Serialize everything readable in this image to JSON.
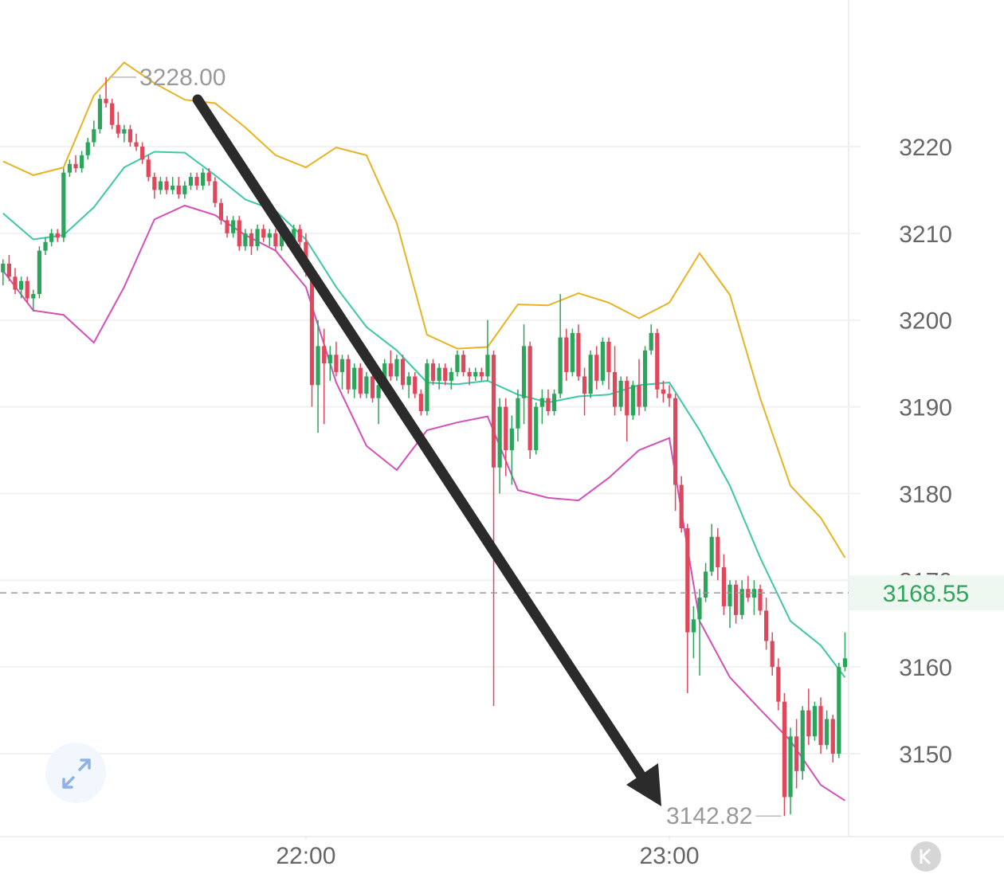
{
  "chart_data": {
    "type": "candlestick",
    "xlim": [
      -0.5,
      139.6
    ],
    "ylim": [
      3140.45,
      3236.9
    ],
    "yticks": [
      3150,
      3160,
      3170,
      3180,
      3190,
      3200,
      3210,
      3220
    ],
    "xticks": [
      {
        "value": 50,
        "label": "22:00"
      },
      {
        "value": 110,
        "label": "23:00"
      }
    ],
    "grid": true,
    "up_color": "#2aa65a",
    "down_color": "#e0475a",
    "candles": [
      [
        3205.5,
        3207,
        3204,
        3206.5
      ],
      [
        3206.5,
        3207.5,
        3204.5,
        3205
      ],
      [
        3205,
        3206,
        3203,
        3203.5
      ],
      [
        3203.5,
        3205,
        3202.5,
        3204.5
      ],
      [
        3204.5,
        3205,
        3202,
        3202.5
      ],
      [
        3202.5,
        3203.5,
        3201,
        3203
      ],
      [
        3203,
        3208.5,
        3202.5,
        3208
      ],
      [
        3208,
        3209.5,
        3207.5,
        3209
      ],
      [
        3209,
        3210.5,
        3208.5,
        3210
      ],
      [
        3210,
        3210.5,
        3209,
        3209.5
      ],
      [
        3209.5,
        3217.5,
        3209,
        3217
      ],
      [
        3217,
        3218.5,
        3216.5,
        3218
      ],
      [
        3218,
        3219,
        3217,
        3217.5
      ],
      [
        3217.5,
        3219.5,
        3217,
        3219
      ],
      [
        3219,
        3221,
        3218.5,
        3220.5
      ],
      [
        3220.5,
        3223,
        3220,
        3222
      ],
      [
        3222,
        3226,
        3221.5,
        3225.5
      ],
      [
        3225.5,
        3228,
        3224.5,
        3225
      ],
      [
        3225,
        3225.5,
        3222,
        3222.5
      ],
      [
        3222.5,
        3224,
        3221,
        3221.5
      ],
      [
        3221.5,
        3222.5,
        3220.5,
        3222
      ],
      [
        3222,
        3222.5,
        3220,
        3220.5
      ],
      [
        3220.5,
        3221.5,
        3219.5,
        3220
      ],
      [
        3220,
        3220.5,
        3218,
        3218.5
      ],
      [
        3218.5,
        3219,
        3216,
        3216.5
      ],
      [
        3216.5,
        3217,
        3214,
        3215
      ],
      [
        3215,
        3216.5,
        3214.5,
        3216
      ],
      [
        3216,
        3216.5,
        3214.5,
        3215
      ],
      [
        3215,
        3216.5,
        3214.5,
        3215.5
      ],
      [
        3215.5,
        3216.5,
        3214,
        3214.5
      ],
      [
        3214.5,
        3216,
        3214,
        3215.5
      ],
      [
        3215.5,
        3217,
        3215,
        3216.5
      ],
      [
        3216.5,
        3217,
        3215,
        3215.5
      ],
      [
        3215.5,
        3217.5,
        3215,
        3217
      ],
      [
        3217,
        3217.5,
        3215.5,
        3216
      ],
      [
        3216,
        3216.5,
        3213,
        3213.5
      ],
      [
        3213.5,
        3214,
        3211,
        3211.5
      ],
      [
        3211.5,
        3212,
        3209.5,
        3210
      ],
      [
        3210,
        3212,
        3209.5,
        3211.5
      ],
      [
        3211.5,
        3212,
        3208,
        3208.5
      ],
      [
        3208.5,
        3210.5,
        3208,
        3210
      ],
      [
        3210,
        3210.5,
        3207.5,
        3208.5
      ],
      [
        3208.5,
        3211,
        3208,
        3210.5
      ],
      [
        3210.5,
        3211,
        3209,
        3209.5
      ],
      [
        3209.5,
        3210.5,
        3208.5,
        3210
      ],
      [
        3210,
        3210.5,
        3208,
        3208.5
      ],
      [
        3208.5,
        3210.5,
        3208,
        3210
      ],
      [
        3210,
        3210.5,
        3208.5,
        3209
      ],
      [
        3209,
        3211,
        3208.5,
        3210.5
      ],
      [
        3210.5,
        3211,
        3208.5,
        3209
      ],
      [
        3209,
        3210,
        3205,
        3205.5
      ],
      [
        3205.5,
        3206,
        3190,
        3192.5
      ],
      [
        3192.5,
        3200,
        3187,
        3197
      ],
      [
        3197,
        3199,
        3188,
        3195
      ],
      [
        3195,
        3197,
        3193,
        3196
      ],
      [
        3196,
        3197.5,
        3193.5,
        3194
      ],
      [
        3194,
        3196,
        3192,
        3195.5
      ],
      [
        3195.5,
        3196,
        3191.5,
        3192
      ],
      [
        3192,
        3195,
        3191,
        3194.5
      ],
      [
        3194.5,
        3195,
        3191,
        3191.5
      ],
      [
        3191.5,
        3194,
        3191,
        3193.5
      ],
      [
        3193.5,
        3194,
        3190.5,
        3191
      ],
      [
        3191,
        3193,
        3188,
        3192.5
      ],
      [
        3192.5,
        3195.5,
        3192,
        3195
      ],
      [
        3195,
        3196.5,
        3193,
        3193.5
      ],
      [
        3193.5,
        3196,
        3193,
        3195.5
      ],
      [
        3195.5,
        3196,
        3192,
        3192.5
      ],
      [
        3192.5,
        3194,
        3191,
        3193.5
      ],
      [
        3193.5,
        3194,
        3191,
        3191.5
      ],
      [
        3191.5,
        3192,
        3189,
        3189.5
      ],
      [
        3189.5,
        3195.5,
        3189,
        3195
      ],
      [
        3195,
        3195.5,
        3192.5,
        3193
      ],
      [
        3193,
        3195,
        3192,
        3194.5
      ],
      [
        3194.5,
        3195,
        3192.5,
        3193
      ],
      [
        3193,
        3194.5,
        3192,
        3194
      ],
      [
        3194,
        3196.5,
        3193.5,
        3196
      ],
      [
        3196,
        3196.5,
        3193.5,
        3194
      ],
      [
        3194,
        3194.5,
        3192.5,
        3193.5
      ],
      [
        3193.5,
        3194.5,
        3193,
        3194
      ],
      [
        3194,
        3194.5,
        3193,
        3193.5
      ],
      [
        3193.5,
        3200,
        3193,
        3196
      ],
      [
        3196,
        3196.5,
        3155.5,
        3183
      ],
      [
        3183,
        3191,
        3180,
        3190
      ],
      [
        3190,
        3191,
        3182,
        3185
      ],
      [
        3185,
        3189,
        3181,
        3187.5
      ],
      [
        3187.5,
        3192,
        3186,
        3191
      ],
      [
        3191,
        3199.5,
        3188,
        3197
      ],
      [
        3197,
        3197.5,
        3184,
        3185
      ],
      [
        3185,
        3190.5,
        3184.5,
        3190
      ],
      [
        3190,
        3192,
        3188,
        3191
      ],
      [
        3191,
        3192,
        3189,
        3189.5
      ],
      [
        3189.5,
        3192,
        3189,
        3191.5
      ],
      [
        3191.5,
        3203,
        3191,
        3198
      ],
      [
        3198,
        3199,
        3193,
        3194
      ],
      [
        3194,
        3199,
        3193.5,
        3198.5
      ],
      [
        3198.5,
        3199.5,
        3193,
        3193.5
      ],
      [
        3193.5,
        3194.5,
        3189,
        3191.5
      ],
      [
        3191.5,
        3196.5,
        3191,
        3196
      ],
      [
        3196,
        3197,
        3192,
        3193
      ],
      [
        3193,
        3198,
        3192.5,
        3197.5
      ],
      [
        3197.5,
        3198,
        3192,
        3194
      ],
      [
        3194,
        3197,
        3189,
        3190
      ],
      [
        3190,
        3193.5,
        3189.5,
        3193
      ],
      [
        3193,
        3193.5,
        3186,
        3189
      ],
      [
        3189,
        3193,
        3188.5,
        3192.5
      ],
      [
        3192.5,
        3195.5,
        3189,
        3190
      ],
      [
        3190,
        3197,
        3189.5,
        3196.5
      ],
      [
        3196.5,
        3199.5,
        3196,
        3198.5
      ],
      [
        3198.5,
        3199,
        3191,
        3192
      ],
      [
        3192,
        3193,
        3190.5,
        3191.5
      ],
      [
        3191.5,
        3192.5,
        3190,
        3191
      ],
      [
        3191,
        3191.5,
        3178,
        3181
      ],
      [
        3181,
        3182,
        3175.5,
        3176
      ],
      [
        3176,
        3176.5,
        3157,
        3164
      ],
      [
        3164,
        3167,
        3161,
        3165.5
      ],
      [
        3165.5,
        3169,
        3159,
        3168
      ],
      [
        3168,
        3172,
        3167.5,
        3171
      ],
      [
        3171,
        3176.5,
        3170.5,
        3175
      ],
      [
        3175,
        3176,
        3170,
        3171.5
      ],
      [
        3171.5,
        3173,
        3166,
        3167
      ],
      [
        3167,
        3170,
        3164.5,
        3169.5
      ],
      [
        3169.5,
        3170,
        3165,
        3166
      ],
      [
        3166,
        3170,
        3165.5,
        3169
      ],
      [
        3169,
        3170.5,
        3167.5,
        3168
      ],
      [
        3168,
        3170,
        3166,
        3169
      ],
      [
        3169,
        3169.5,
        3166,
        3166.5
      ],
      [
        3166.5,
        3168,
        3162,
        3163
      ],
      [
        3163,
        3164,
        3159,
        3160
      ],
      [
        3160,
        3161,
        3155,
        3156
      ],
      [
        3156,
        3157,
        3142.82,
        3145
      ],
      [
        3145,
        3153,
        3143,
        3152
      ],
      [
        3152,
        3154,
        3146,
        3148
      ],
      [
        3148,
        3155.5,
        3147,
        3155
      ],
      [
        3155,
        3157.5,
        3151,
        3152
      ],
      [
        3152,
        3156,
        3151.5,
        3155.5
      ],
      [
        3155.5,
        3156.5,
        3150,
        3151
      ],
      [
        3151,
        3155,
        3150.5,
        3154
      ],
      [
        3154,
        3154.5,
        3149,
        3150
      ],
      [
        3150,
        3160.5,
        3149.5,
        3160
      ],
      [
        3160,
        3164,
        3159.5,
        3161
      ]
    ],
    "band_x": [
      0,
      5,
      10,
      15,
      20,
      25,
      30,
      35,
      40,
      45,
      50,
      55,
      60,
      65,
      70,
      75,
      80,
      85,
      90,
      95,
      100,
      105,
      110,
      115,
      120,
      125,
      130,
      135,
      139
    ],
    "bands": [
      {
        "color": "#e8b323",
        "values": [
          3218.3,
          3216.7,
          3217.6,
          3225.9,
          3229.7,
          3227.3,
          3225.4,
          3225,
          3222.2,
          3219,
          3217.6,
          3219.9,
          3219,
          3211.2,
          3198.3,
          3196.7,
          3196.9,
          3201.8,
          3201.7,
          3203.1,
          3202,
          3200.2,
          3202,
          3207.7,
          3202.9,
          3191,
          3180.9,
          3177.2,
          3172.6
        ]
      },
      {
        "color": "#3cc7a6",
        "values": [
          3212.3,
          3209.3,
          3209.8,
          3213,
          3217.6,
          3219.4,
          3219.3,
          3216.7,
          3213.9,
          3212.6,
          3209.3,
          3203.8,
          3199.2,
          3196.5,
          3192.8,
          3192.6,
          3193,
          3191.4,
          3190.5,
          3191.2,
          3191.4,
          3192.5,
          3192.8,
          3187.3,
          3180.9,
          3172.6,
          3165.3,
          3162.5,
          3158.8
        ]
      },
      {
        "color": "#d44fb8",
        "values": [
          3205.7,
          3201.1,
          3200.6,
          3197.4,
          3203.8,
          3211.6,
          3213.2,
          3212.1,
          3209.8,
          3208,
          3203.8,
          3192.8,
          3185.5,
          3182.7,
          3187.3,
          3188.2,
          3188.9,
          3180.4,
          3179.5,
          3179.2,
          3181.8,
          3185,
          3186.4,
          3165.3,
          3158.8,
          3155.1,
          3151.5,
          3146.4,
          3144.6
        ]
      }
    ],
    "high_marker": {
      "value": 3228,
      "label": "3228.00"
    },
    "low_marker": 3142.82,
    "last_price": 3168.55
  }
}
